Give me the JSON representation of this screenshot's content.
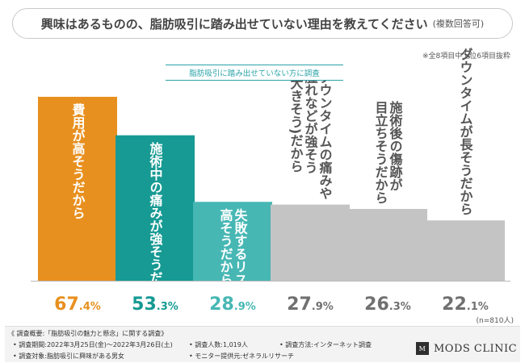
{
  "title": "興味はあるものの、脂肪吸引に踏み出せていない理由を教えてください",
  "title_note": "(複数回答可)",
  "extract_note": "※全8項目中上位6項目抜粋",
  "subtitle": "脂肪吸引に踏み出せていない方に調査",
  "n_note": "(n=810人)",
  "colors": {
    "orange": "#e8901f",
    "teal_dark": "#169a93",
    "teal_light": "#47b7b4",
    "gray": "#c4c4c4",
    "gray_text": "#707070"
  },
  "chart_data": {
    "type": "bar",
    "title": "興味はあるものの、脂肪吸引に踏み出せていない理由を教えてください",
    "categories": [
      "費用が高そうだから",
      "施術中の痛みが強そうだから",
      "失敗するリスクが高そうだから",
      "ダウンタイムの痛みや腫れなどが強そう(大きそう)だから",
      "施術後の傷跡が目立ちそうだから",
      "ダウンタイムが長そうだから"
    ],
    "values": [
      67.4,
      53.3,
      28.9,
      27.9,
      26.3,
      22.1
    ],
    "value_labels": [
      {
        "int": "67",
        "dec": ".4%"
      },
      {
        "int": "53",
        "dec": ".3%"
      },
      {
        "int": "28",
        "dec": ".9%"
      },
      {
        "int": "27",
        "dec": ".9%"
      },
      {
        "int": "26",
        "dec": ".3%"
      },
      {
        "int": "22",
        "dec": ".1%"
      }
    ],
    "bar_label_lines": [
      [
        "費用が高そうだから"
      ],
      [
        "施術中の痛みが強そうだから"
      ],
      [
        "失敗するリスクが",
        "高そうだから"
      ],
      [
        "ダウンタイムの痛みや",
        "腫れなどが強そう",
        "(大きそう)だから"
      ],
      [
        "施術後の傷跡が",
        "目立ちそうだから"
      ],
      [
        "ダウンタイムが長そうだから"
      ]
    ],
    "unit": "%",
    "ylim": [
      0,
      70
    ]
  },
  "footer": {
    "overview": "《 調査概要:「脂肪吸引の魅力と懸念」に関する調査》",
    "period": "• 調査期間:2022年3月25日(金)〜2022年3月26日(土)",
    "people": "• 調査人数:1,019人",
    "method": "• 調査方法:インターネット調査",
    "target": "• 調査対象:脂肪吸引に興味がある男女",
    "provider": "• モニター提供元:ゼネラルリサーチ"
  },
  "logo": {
    "mark": "M",
    "text": "MODS CLINIC"
  }
}
